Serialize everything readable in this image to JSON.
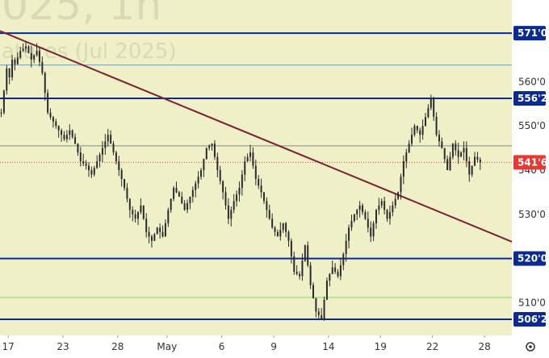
{
  "watermark": {
    "line1": "025, 1h",
    "line2": "atures (Jul 2025)"
  },
  "chart_data": {
    "type": "candlestick",
    "title": "",
    "xlabel": "",
    "ylabel": "",
    "ylim": [
      502.6,
      578.5
    ],
    "x_ticks": [
      {
        "label": "17",
        "pos": 3
      },
      {
        "label": "23",
        "pos": 23
      },
      {
        "label": "28",
        "pos": 43
      },
      {
        "label": "May",
        "pos": 61
      },
      {
        "label": "6",
        "pos": 81
      },
      {
        "label": "9",
        "pos": 100
      },
      {
        "label": "14",
        "pos": 120
      },
      {
        "label": "19",
        "pos": 139
      },
      {
        "label": "22",
        "pos": 158
      },
      {
        "label": "28",
        "pos": 177
      }
    ],
    "y_ticks": [
      "560'0",
      "550'0",
      "540'0",
      "530'0",
      "510'0"
    ],
    "y_tick_values": [
      560,
      550,
      540,
      530,
      510
    ],
    "price_tags": [
      {
        "label": "571'0",
        "value": 571,
        "color": "#0d2b8e"
      },
      {
        "label": "556'2",
        "value": 556.25,
        "color": "#0d2b8e"
      },
      {
        "label": "541'6",
        "value": 541.75,
        "color": "#e53935"
      },
      {
        "label": "520'0",
        "value": 520,
        "color": "#0d2b8e"
      },
      {
        "label": "506'2",
        "value": 506.25,
        "color": "#0d2b8e"
      }
    ],
    "horizontal_levels": [
      {
        "value": 571,
        "color": "#0d2b8e",
        "style": "thick"
      },
      {
        "value": 563.8,
        "color": "#6a9fd0",
        "style": "thin"
      },
      {
        "value": 556.25,
        "color": "#0d2b8e",
        "style": "thick"
      },
      {
        "value": 545.5,
        "color": "#888888",
        "style": "thin"
      },
      {
        "value": 541.75,
        "color": "#e53935",
        "style": "dotted"
      },
      {
        "value": 520,
        "color": "#0d2b8e",
        "style": "thick"
      },
      {
        "value": 511.2,
        "color": "#8ccf6e",
        "style": "thin"
      },
      {
        "value": 506.25,
        "color": "#0d2b8e",
        "style": "thick"
      }
    ],
    "trendline": {
      "x1": 0,
      "y1": 571.5,
      "x2": 187,
      "y2": 523.8,
      "color": "#7a2432"
    },
    "price_path": [
      [
        0,
        553
      ],
      [
        1,
        558
      ],
      [
        2,
        563
      ],
      [
        3,
        561
      ],
      [
        4,
        565
      ],
      [
        5,
        564
      ],
      [
        7,
        567
      ],
      [
        9,
        568
      ],
      [
        11,
        565
      ],
      [
        13,
        567
      ],
      [
        15,
        562
      ],
      [
        17,
        553
      ],
      [
        19,
        551
      ],
      [
        21,
        549
      ],
      [
        23,
        547
      ],
      [
        25,
        549
      ],
      [
        27,
        546
      ],
      [
        29,
        542
      ],
      [
        31,
        541
      ],
      [
        33,
        539
      ],
      [
        35,
        542
      ],
      [
        37,
        545
      ],
      [
        39,
        548
      ],
      [
        41,
        544
      ],
      [
        43,
        540
      ],
      [
        45,
        536
      ],
      [
        47,
        531
      ],
      [
        49,
        529
      ],
      [
        51,
        532
      ],
      [
        53,
        526
      ],
      [
        55,
        524
      ],
      [
        57,
        527
      ],
      [
        59,
        525
      ],
      [
        61,
        531
      ],
      [
        63,
        536
      ],
      [
        65,
        534
      ],
      [
        67,
        531
      ],
      [
        69,
        534
      ],
      [
        71,
        537
      ],
      [
        73,
        540
      ],
      [
        75,
        545
      ],
      [
        77,
        546
      ],
      [
        79,
        540
      ],
      [
        81,
        535
      ],
      [
        83,
        529
      ],
      [
        85,
        533
      ],
      [
        87,
        536
      ],
      [
        89,
        542
      ],
      [
        91,
        544
      ],
      [
        93,
        538
      ],
      [
        95,
        535
      ],
      [
        97,
        531
      ],
      [
        99,
        527
      ],
      [
        101,
        525
      ],
      [
        103,
        528
      ],
      [
        105,
        524
      ],
      [
        107,
        517
      ],
      [
        109,
        516
      ],
      [
        111,
        523
      ],
      [
        113,
        514
      ],
      [
        115,
        508
      ],
      [
        117,
        506.3
      ],
      [
        119,
        515
      ],
      [
        121,
        518
      ],
      [
        123,
        516
      ],
      [
        125,
        521
      ],
      [
        127,
        527
      ],
      [
        129,
        530
      ],
      [
        131,
        532
      ],
      [
        133,
        529
      ],
      [
        135,
        525
      ],
      [
        137,
        531
      ],
      [
        139,
        533
      ],
      [
        141,
        529
      ],
      [
        143,
        532
      ],
      [
        145,
        535
      ],
      [
        147,
        542
      ],
      [
        149,
        546
      ],
      [
        151,
        550
      ],
      [
        153,
        548
      ],
      [
        155,
        552
      ],
      [
        157,
        556.2
      ],
      [
        159,
        548
      ],
      [
        161,
        545
      ],
      [
        163,
        540
      ],
      [
        165,
        546
      ],
      [
        167,
        543
      ],
      [
        169,
        545
      ],
      [
        171,
        539
      ],
      [
        173,
        543
      ],
      [
        175,
        541.75
      ]
    ]
  }
}
